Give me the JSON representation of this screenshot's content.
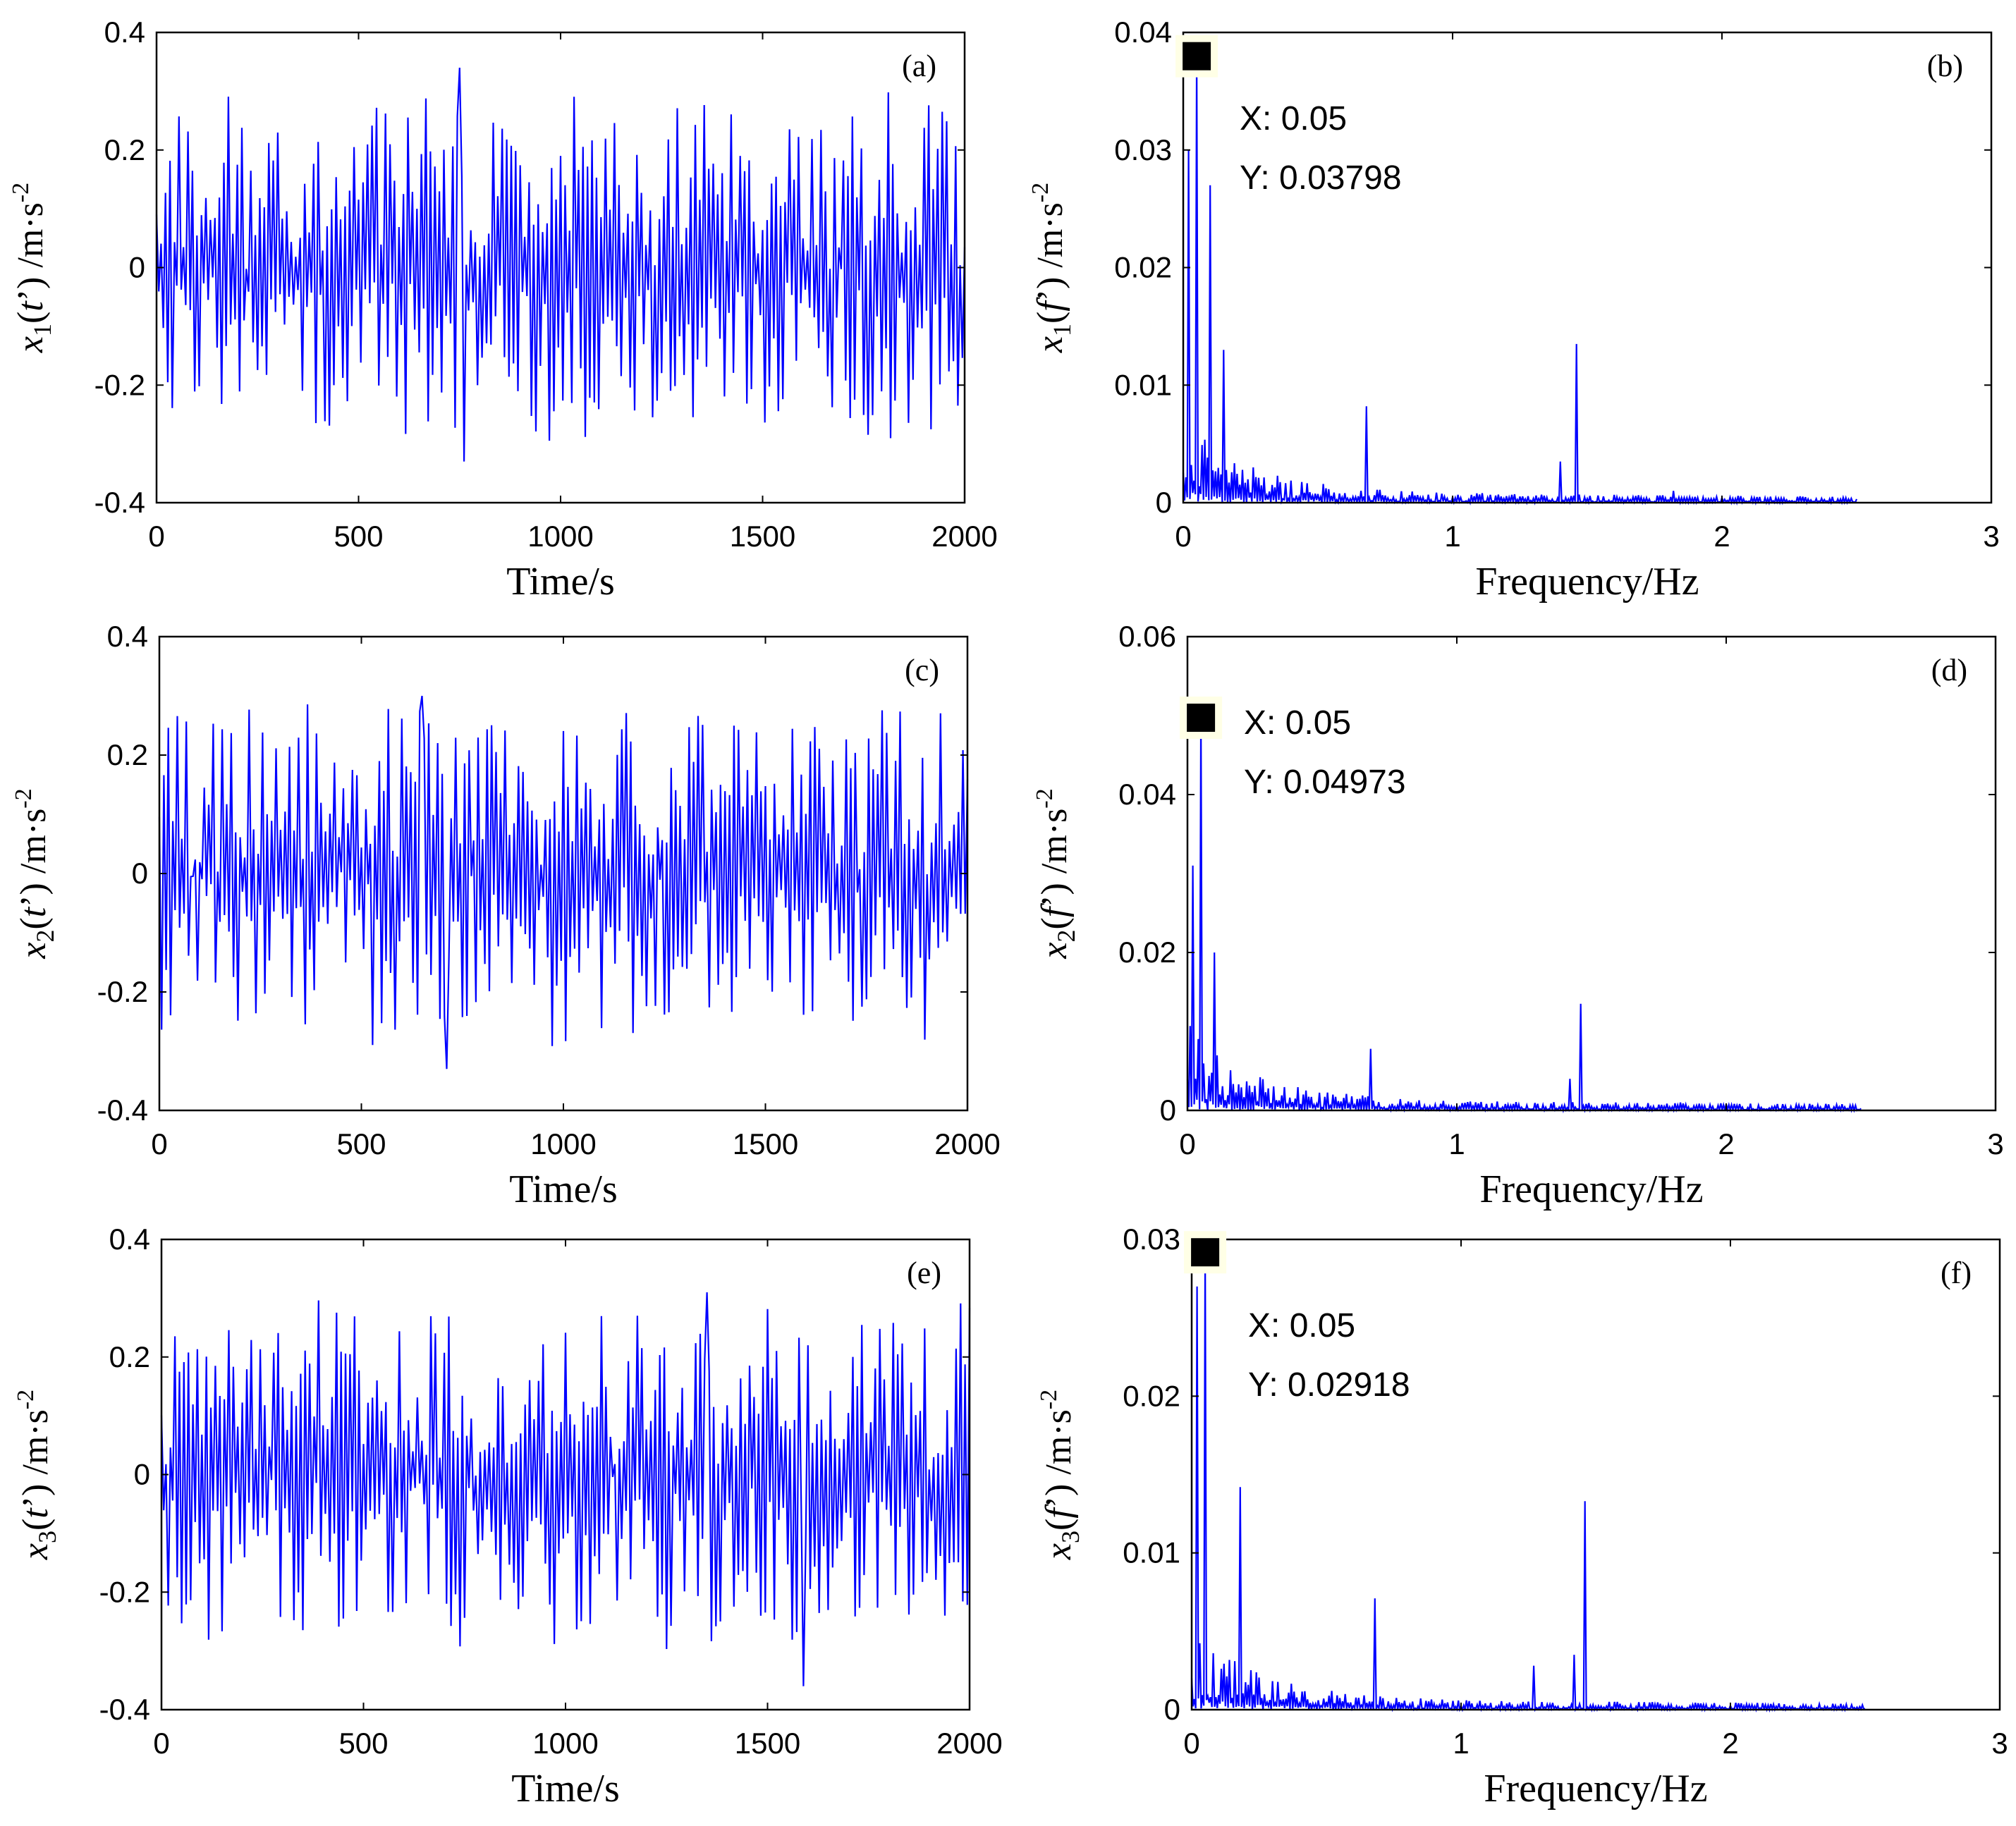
{
  "chart_data": [
    {
      "panel": "(a)",
      "type": "line",
      "xlabel": "Time/s",
      "ylabel": {
        "sym": "x",
        "sub": "1",
        "arg": "t",
        "unit": " /m·s",
        "sup": "-2"
      },
      "xlim": [
        0,
        2000
      ],
      "ylim": [
        -0.4,
        0.4
      ],
      "xticks": [
        "0",
        "500",
        "1000",
        "1500",
        "2000"
      ],
      "yticks": [
        "-0.4",
        "-0.2",
        "0",
        "0.2",
        "0.4"
      ],
      "signal": {
        "n": 360,
        "amplitude_peak": 0.34,
        "amplitude_trough": -0.33,
        "spike_at": 750,
        "dip_at": 760,
        "seed": 11
      },
      "datatip": null
    },
    {
      "panel": "(b)",
      "type": "line",
      "xlabel": "Frequency/Hz",
      "ylabel": {
        "sym": "x",
        "sub": "1",
        "arg": "f",
        "unit": " /m·s",
        "sup": "-2"
      },
      "xlim": [
        0,
        3
      ],
      "ylim": [
        0,
        0.04
      ],
      "x_end": 2.5,
      "xticks": [
        "0",
        "1",
        "2",
        "3"
      ],
      "yticks": [
        "0",
        "0.01",
        "0.02",
        "0.03",
        "0.04"
      ],
      "peaks": [
        [
          0.05,
          0.03798
        ],
        [
          0.1,
          0.027
        ],
        [
          0.02,
          0.03
        ],
        [
          0.15,
          0.013
        ],
        [
          0.68,
          0.0082
        ],
        [
          1.46,
          0.0135
        ],
        [
          1.4,
          0.0035
        ],
        [
          1.82,
          0.001
        ]
      ],
      "seed": 21,
      "datatip": {
        "x": 0.05,
        "y": 0.03798,
        "xtext": "X: 0.05",
        "ytext": "Y: 0.03798"
      }
    },
    {
      "panel": "(c)",
      "type": "line",
      "xlabel": "Time/s",
      "ylabel": {
        "sym": "x",
        "sub": "2",
        "arg": "t",
        "unit": " /m·s",
        "sup": "-2"
      },
      "xlim": [
        0,
        2000
      ],
      "ylim": [
        -0.4,
        0.4
      ],
      "xticks": [
        "0",
        "500",
        "1000",
        "1500",
        "2000"
      ],
      "yticks": [
        "-0.4",
        "-0.2",
        "0",
        "0.2",
        "0.4"
      ],
      "signal": {
        "n": 360,
        "amplitude_peak": 0.3,
        "amplitude_trough": -0.33,
        "spike_at": 650,
        "dip_at": 710,
        "seed": 33
      },
      "datatip": null
    },
    {
      "panel": "(d)",
      "type": "line",
      "xlabel": "Frequency/Hz",
      "ylabel": {
        "sym": "x",
        "sub": "2",
        "arg": "f",
        "unit": " /m·s",
        "sup": "-2"
      },
      "xlim": [
        0,
        3
      ],
      "ylim": [
        0,
        0.06
      ],
      "x_end": 2.5,
      "xticks": [
        "0",
        "1",
        "2",
        "3"
      ],
      "yticks": [
        "0",
        "0.02",
        "0.04",
        "0.06"
      ],
      "peaks": [
        [
          0.05,
          0.04973
        ],
        [
          0.02,
          0.031
        ],
        [
          0.1,
          0.02
        ],
        [
          0.68,
          0.0078
        ],
        [
          1.46,
          0.0135
        ],
        [
          1.42,
          0.004
        ],
        [
          1.83,
          0.001
        ]
      ],
      "seed": 44,
      "datatip": {
        "x": 0.05,
        "y": 0.04973,
        "xtext": "X: 0.05",
        "ytext": "Y: 0.04973"
      }
    },
    {
      "panel": "(e)",
      "type": "line",
      "xlabel": "Time/s",
      "ylabel": {
        "sym": "x",
        "sub": "3",
        "arg": "t",
        "unit": " /m·s",
        "sup": "-2"
      },
      "xlim": [
        0,
        2000
      ],
      "ylim": [
        -0.4,
        0.4
      ],
      "xticks": [
        "0",
        "500",
        "1000",
        "1500",
        "2000"
      ],
      "yticks": [
        "-0.4",
        "-0.2",
        "0",
        "0.2",
        "0.4"
      ],
      "signal": {
        "n": 360,
        "amplitude_peak": 0.31,
        "amplitude_trough": -0.36,
        "spike_at": 1350,
        "dip_at": 1590,
        "seed": 55
      },
      "datatip": null
    },
    {
      "panel": "(f)",
      "type": "line",
      "xlabel": "Frequency/Hz",
      "ylabel": {
        "sym": "x",
        "sub": "3",
        "arg": "f",
        "unit": " /m·s",
        "sup": "-2"
      },
      "xlim": [
        0,
        3
      ],
      "ylim": [
        0,
        0.03
      ],
      "x_end": 2.5,
      "xticks": [
        "0",
        "1",
        "2",
        "3"
      ],
      "yticks": [
        "0",
        "0.01",
        "0.02",
        "0.03"
      ],
      "peaks": [
        [
          0.05,
          0.02918
        ],
        [
          0.02,
          0.027
        ],
        [
          0.18,
          0.0142
        ],
        [
          0.68,
          0.0071
        ],
        [
          1.46,
          0.0133
        ],
        [
          1.42,
          0.0035
        ],
        [
          1.27,
          0.0028
        ]
      ],
      "seed": 66,
      "datatip": {
        "x": 0.05,
        "y": 0.02918,
        "xtext": "X: 0.05",
        "ytext": "Y: 0.02918"
      }
    }
  ],
  "colors": {
    "trace": "#0000ff",
    "frame": "#000000",
    "datatip_fill": "#ffffe6",
    "marker": "#000000"
  }
}
